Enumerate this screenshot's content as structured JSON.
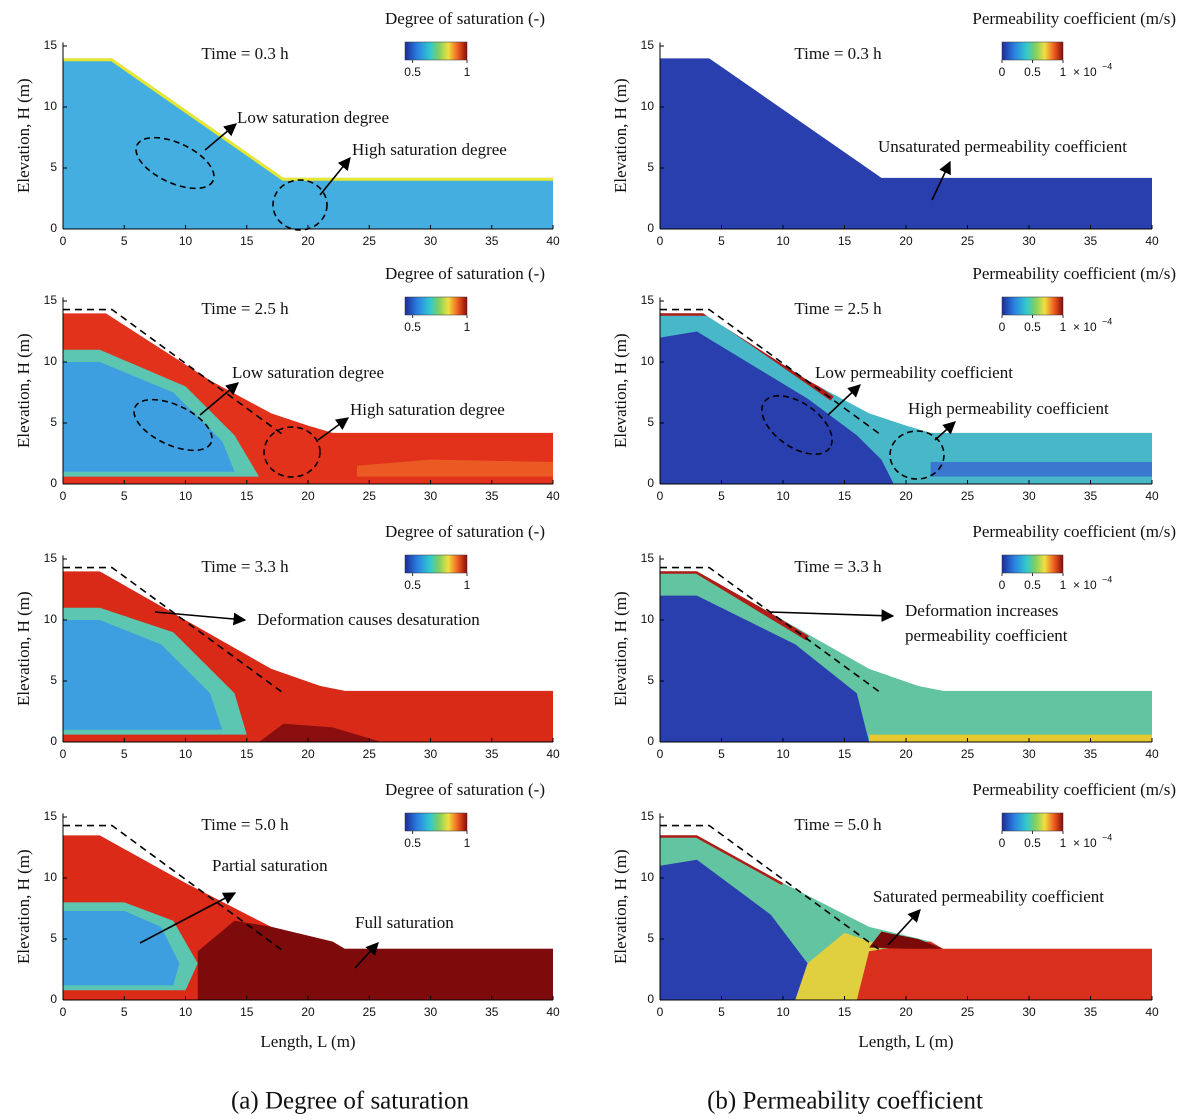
{
  "captions": [
    "(a)  Degree of saturation",
    "(b) Permeability coefficient"
  ],
  "chart_data": [
    {
      "type": "contour",
      "title": "Time = 0.3 h",
      "colorbar_label": "Degree of saturation (-)",
      "clim": [
        0.43,
        1
      ],
      "cticks": [
        0.5,
        1
      ],
      "xlim": [
        0,
        40
      ],
      "ylim": [
        0,
        15.3
      ],
      "xticks": [
        0,
        5,
        10,
        15,
        20,
        25,
        30,
        35,
        40
      ],
      "yticks": [
        0,
        5,
        10,
        15
      ],
      "ylabel": "Elevation, H (m)",
      "annotations": [
        "Low saturation degree",
        "High saturation degree"
      ]
    },
    {
      "type": "contour",
      "title": "Time = 0.3 h",
      "colorbar_label": "Permeability coefficient (m/s)",
      "clim": [
        0,
        1
      ],
      "cticks": [
        0,
        0.5,
        1
      ],
      "colorbar_multiplier": "× 10",
      "colorbar_exponent": "−4",
      "xlim": [
        0,
        40
      ],
      "ylim": [
        0,
        15.3
      ],
      "xticks": [
        0,
        5,
        10,
        15,
        20,
        25,
        30,
        35,
        40
      ],
      "yticks": [
        0,
        5,
        10,
        15
      ],
      "ylabel": "Elevation, H (m)",
      "annotations": [
        "Unsaturated permeability coefficient"
      ]
    },
    {
      "type": "contour",
      "title": "Time = 2.5 h",
      "colorbar_label": "Degree of saturation (-)",
      "clim": [
        0.43,
        1
      ],
      "cticks": [
        0.5,
        1
      ],
      "xlim": [
        0,
        40
      ],
      "ylim": [
        0,
        15.3
      ],
      "xticks": [
        0,
        5,
        10,
        15,
        20,
        25,
        30,
        35,
        40
      ],
      "yticks": [
        0,
        5,
        10,
        15
      ],
      "ylabel": "Elevation, H (m)",
      "annotations": [
        "Low saturation degree",
        "High saturation degree"
      ]
    },
    {
      "type": "contour",
      "title": "Time = 2.5 h",
      "colorbar_label": "Permeability coefficient (m/s)",
      "clim": [
        0,
        1
      ],
      "cticks": [
        0,
        0.5,
        1
      ],
      "colorbar_multiplier": "× 10",
      "colorbar_exponent": "−4",
      "xlim": [
        0,
        40
      ],
      "ylim": [
        0,
        15.3
      ],
      "xticks": [
        0,
        5,
        10,
        15,
        20,
        25,
        30,
        35,
        40
      ],
      "yticks": [
        0,
        5,
        10,
        15
      ],
      "ylabel": "Elevation, H (m)",
      "annotations": [
        "Low permeability coefficient",
        "High permeability coefficient"
      ]
    },
    {
      "type": "contour",
      "title": "Time = 3.3 h",
      "colorbar_label": "Degree of saturation (-)",
      "clim": [
        0.43,
        1
      ],
      "cticks": [
        0.5,
        1
      ],
      "xlim": [
        0,
        40
      ],
      "ylim": [
        0,
        15.3
      ],
      "xticks": [
        0,
        5,
        10,
        15,
        20,
        25,
        30,
        35,
        40
      ],
      "yticks": [
        0,
        5,
        10,
        15
      ],
      "ylabel": "Elevation, H (m)",
      "annotations": [
        "Deformation causes desaturation"
      ]
    },
    {
      "type": "contour",
      "title": "Time = 3.3 h",
      "colorbar_label": "Permeability coefficient (m/s)",
      "clim": [
        0,
        1
      ],
      "cticks": [
        0,
        0.5,
        1
      ],
      "colorbar_multiplier": "× 10",
      "colorbar_exponent": "−4",
      "xlim": [
        0,
        40
      ],
      "ylim": [
        0,
        15.3
      ],
      "xticks": [
        0,
        5,
        10,
        15,
        20,
        25,
        30,
        35,
        40
      ],
      "yticks": [
        0,
        5,
        10,
        15
      ],
      "ylabel": "Elevation, H (m)",
      "annotations": [
        "Deformation increases",
        "permeability coefficient"
      ]
    },
    {
      "type": "contour",
      "title": "Time = 5.0 h",
      "colorbar_label": "Degree of saturation (-)",
      "clim": [
        0.43,
        1
      ],
      "cticks": [
        0.5,
        1
      ],
      "xlim": [
        0,
        40
      ],
      "ylim": [
        0,
        15.3
      ],
      "xticks": [
        0,
        5,
        10,
        15,
        20,
        25,
        30,
        35,
        40
      ],
      "yticks": [
        0,
        5,
        10,
        15
      ],
      "ylabel": "Elevation, H (m)",
      "xlabel": "Length, L (m)",
      "annotations": [
        "Partial saturation",
        "Full saturation"
      ]
    },
    {
      "type": "contour",
      "title": "Time = 5.0 h",
      "colorbar_label": "Permeability coefficient (m/s)",
      "clim": [
        0,
        1
      ],
      "cticks": [
        0,
        0.5,
        1
      ],
      "colorbar_multiplier": "× 10",
      "colorbar_exponent": "−4",
      "xlim": [
        0,
        40
      ],
      "ylim": [
        0,
        15.3
      ],
      "xticks": [
        0,
        5,
        10,
        15,
        20,
        25,
        30,
        35,
        40
      ],
      "yticks": [
        0,
        5,
        10,
        15
      ],
      "ylabel": "Elevation, H (m)",
      "xlabel": "Length, L (m)",
      "annotations": [
        "Saturated permeability coefficient"
      ]
    }
  ]
}
